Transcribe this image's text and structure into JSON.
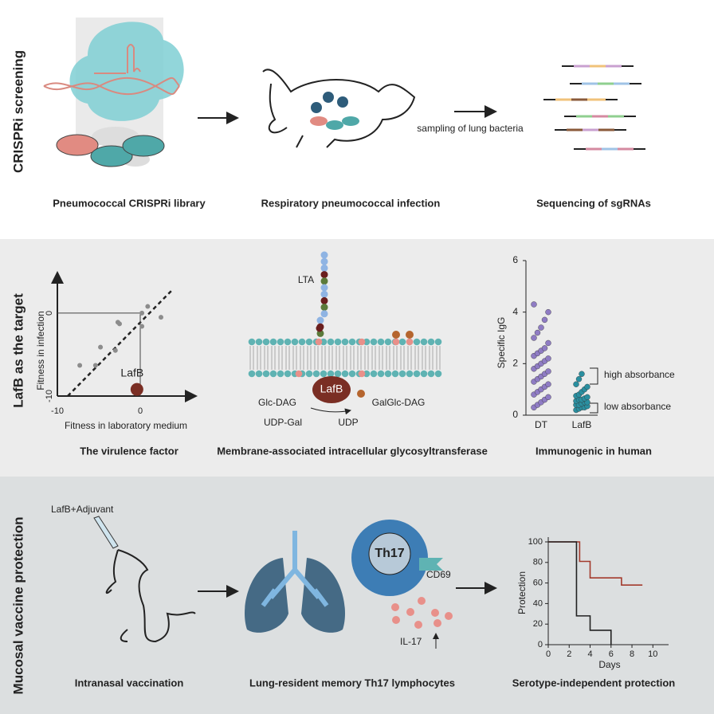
{
  "screening": {
    "title": "CRISPRi screening",
    "library_caption": "Pneumococcal CRISPRi library",
    "infection_caption": "Respiratory pneumococcal infection",
    "sampling_label": "sampling of lung bacteria",
    "sequencing_caption": "Sequencing of sgRNAs"
  },
  "target": {
    "title": "LafB as the target",
    "fitness_plot": {
      "type": "scatter",
      "x_label": "Fitness in laboratory medium",
      "y_label": "Fitness in infection",
      "xlim": [
        -10,
        6.5
      ],
      "ylim": [
        -10,
        4.6
      ],
      "xticks": [
        -10,
        0
      ],
      "yticks": [
        -10,
        0
      ],
      "points": {
        "x": [
          0.2,
          0.9,
          2.5,
          -2.5,
          0.2,
          -2.7,
          -4.8,
          -3,
          -5.4,
          -7.3
        ],
        "y": [
          0,
          0.8,
          -0.5,
          -1.3,
          -1.6,
          -1.1,
          -4.1,
          -4.5,
          -6.3,
          -6.3
        ],
        "color": "#8c8c8c"
      },
      "highlight": {
        "name": "LafB",
        "x": -0.4,
        "y": -9.2,
        "color": "#7a2e24"
      },
      "caption": "The virulence factor"
    },
    "membrane": {
      "lta_label": "LTA",
      "enzyme_label": "LafB",
      "substrate_label": "Glc-DAG",
      "donor_label": "UDP-Gal",
      "byproduct_label": "UDP",
      "product_label": "GalGlc-DAG",
      "caption": "Membrane-associated intracellular glycosyltransferase"
    },
    "igg_plot": {
      "type": "dot",
      "y_label": "Specific IgG",
      "ylim": [
        0,
        6
      ],
      "yticks": [
        0,
        2,
        4,
        6
      ],
      "series": [
        {
          "name": "DT",
          "color": "#8f7cc4",
          "values": [
            0.3,
            0.4,
            0.5,
            0.6,
            0.7,
            0.8,
            0.9,
            1.0,
            1.1,
            1.2,
            1.3,
            1.4,
            1.5,
            1.6,
            1.7,
            1.8,
            1.9,
            2.0,
            2.1,
            2.2,
            2.3,
            2.4,
            2.5,
            2.6,
            2.8,
            3.0,
            3.2,
            3.4,
            3.7,
            4.0,
            4.3
          ]
        },
        {
          "name": "LafB",
          "color": "#2a8fa0",
          "values": [
            0.2,
            0.25,
            0.3,
            0.3,
            0.35,
            0.4,
            0.4,
            0.45,
            0.5,
            0.5,
            0.55,
            0.6,
            0.6,
            0.65,
            0.7,
            0.75,
            0.8,
            0.9,
            1.0,
            1.1,
            1.2,
            1.4,
            1.6
          ]
        }
      ],
      "annotations": [
        "high absorbance",
        "low absorbance"
      ],
      "caption": "Immunogenic in human"
    }
  },
  "protection": {
    "title": "Mucosal vaccine  protection",
    "vaccine_label": "LafB+Adjuvant",
    "vaccination_caption": "Intranasal vaccination",
    "cell_label": "Th17",
    "marker_label": "CD69",
    "cytokine_label": "IL-17",
    "memory_caption": "Lung-resident memory Th17 lymphocytes",
    "survival_plot": {
      "type": "line",
      "x_label": "Days",
      "y_label": "Protection",
      "xlim": [
        0,
        11.5
      ],
      "ylim": [
        0,
        100
      ],
      "xticks": [
        0,
        2,
        4,
        6,
        8,
        10
      ],
      "yticks": [
        0,
        20,
        40,
        60,
        80,
        100
      ],
      "series": [
        {
          "color": "#a33a2c",
          "x": [
            0,
            3,
            3,
            4,
            4,
            7,
            7,
            9
          ],
          "values": [
            100,
            100,
            81,
            81,
            65,
            65,
            58,
            58
          ]
        },
        {
          "color": "#222222",
          "x": [
            0,
            2.7,
            2.7,
            4,
            4,
            6,
            6
          ],
          "values": [
            100,
            100,
            28,
            28,
            14,
            14,
            0
          ]
        }
      ],
      "caption": "Serotype-independent protection"
    }
  }
}
